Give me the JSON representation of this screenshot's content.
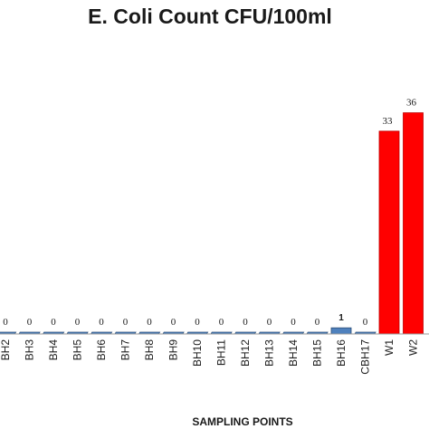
{
  "chart_data": {
    "type": "bar",
    "title": "E. Coli Count CFU/100ml",
    "xlabel": "SAMPLING POINTS",
    "ylabel": "",
    "ylim": [
      0,
      38
    ],
    "grid": false,
    "legend": "none",
    "categories": [
      "BH2",
      "BH3",
      "BH4",
      "BH5",
      "BH6",
      "BH7",
      "BH8",
      "BH9",
      "BH10",
      "BH11",
      "BH12",
      "BH13",
      "BH14",
      "BH15",
      "BH16",
      "CBH17",
      "W1",
      "W2"
    ],
    "values": [
      0,
      0,
      0,
      0,
      0,
      0,
      0,
      0,
      0,
      0,
      0,
      0,
      0,
      0,
      1,
      0,
      33,
      36
    ],
    "data_labels": [
      "0",
      "0",
      "0",
      "0",
      "0",
      "0",
      "0",
      "0",
      "0",
      "0",
      "0",
      "0",
      "0",
      "0",
      "1",
      "0",
      "33",
      "36"
    ],
    "colors": {
      "borehole": "#4f81bd",
      "borehole_edge": "#2c4d75",
      "water": "#ff0000",
      "water_edge": "#c00000"
    }
  }
}
